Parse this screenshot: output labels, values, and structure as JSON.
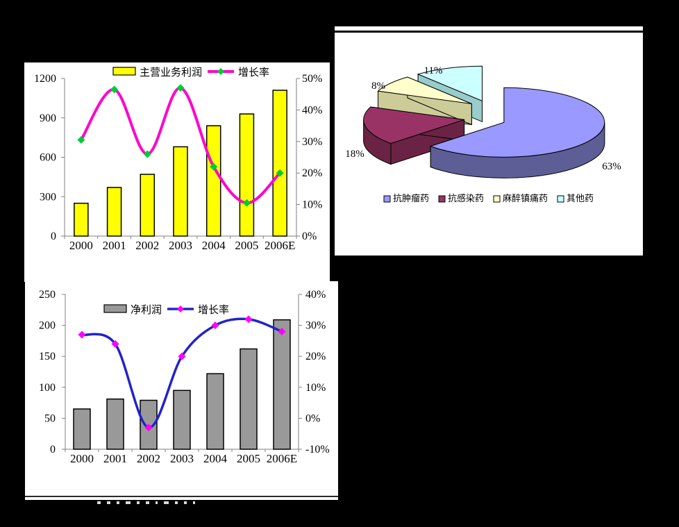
{
  "page": {
    "background": "#000000"
  },
  "colors": {
    "axis": "#808080",
    "text": "#000000",
    "panel_bg": "#ffffff"
  },
  "chart_data": [
    {
      "id": "main_profit",
      "type": "bar",
      "title": "",
      "categories": [
        "2000",
        "2001",
        "2002",
        "2003",
        "2004",
        "2005",
        "2006E"
      ],
      "series": [
        {
          "name": "主营业务利润",
          "type": "bar",
          "axis": "left",
          "color": "#FFFF00",
          "border": "#000000",
          "values": [
            250,
            370,
            470,
            680,
            840,
            930,
            1110
          ]
        },
        {
          "name": "增长率",
          "type": "line",
          "axis": "right",
          "color": "#FF00CC",
          "marker_color": "#00CC33",
          "values": [
            30.5,
            46.5,
            26,
            47,
            22,
            10.5,
            20
          ]
        }
      ],
      "left_axis": {
        "min": 0,
        "max": 1200,
        "step": 300,
        "labels": [
          "0",
          "300",
          "600",
          "900",
          "1200"
        ]
      },
      "right_axis": {
        "min": 0,
        "max": 50,
        "step": 10,
        "labels": [
          "0%",
          "10%",
          "20%",
          "30%",
          "40%",
          "50%"
        ]
      },
      "legend_position": "top",
      "grid": false
    },
    {
      "id": "drug_share_pie",
      "type": "pie",
      "title": "",
      "labels": [
        "抗肿瘤药",
        "抗感染药",
        "麻醉镇痛药",
        "其他药"
      ],
      "values": [
        63,
        18,
        8,
        11
      ],
      "value_labels": [
        "63%",
        "18%",
        "8%",
        "11%"
      ],
      "colors": [
        "#9999FF",
        "#993366",
        "#FFFFCC",
        "#CCFFFF"
      ],
      "side_colors": [
        "#5E5E96",
        "#6B2345",
        "#CCCC99",
        "#99CCCC"
      ],
      "legend_position": "bottom"
    },
    {
      "id": "net_profit",
      "type": "bar",
      "title": "",
      "categories": [
        "2000",
        "2001",
        "2002",
        "2003",
        "2004",
        "2005",
        "2006E"
      ],
      "series": [
        {
          "name": "净利润",
          "type": "bar",
          "axis": "left",
          "color": "#999999",
          "border": "#000000",
          "values": [
            65,
            81,
            79,
            95,
            122,
            162,
            209
          ]
        },
        {
          "name": "增长率",
          "type": "line",
          "axis": "right",
          "color": "#2222CC",
          "marker_color": "#FF00FF",
          "values": [
            27,
            24,
            -3,
            20,
            30,
            32,
            28
          ]
        }
      ],
      "left_axis": {
        "min": 0,
        "max": 250,
        "step": 50,
        "labels": [
          "0",
          "50",
          "100",
          "150",
          "200",
          "250"
        ]
      },
      "right_axis": {
        "min": -10,
        "max": 40,
        "step": 10,
        "labels": [
          "-10%",
          "0%",
          "10%",
          "20%",
          "30%",
          "40%"
        ]
      },
      "legend_position": "top",
      "grid": false
    }
  ]
}
